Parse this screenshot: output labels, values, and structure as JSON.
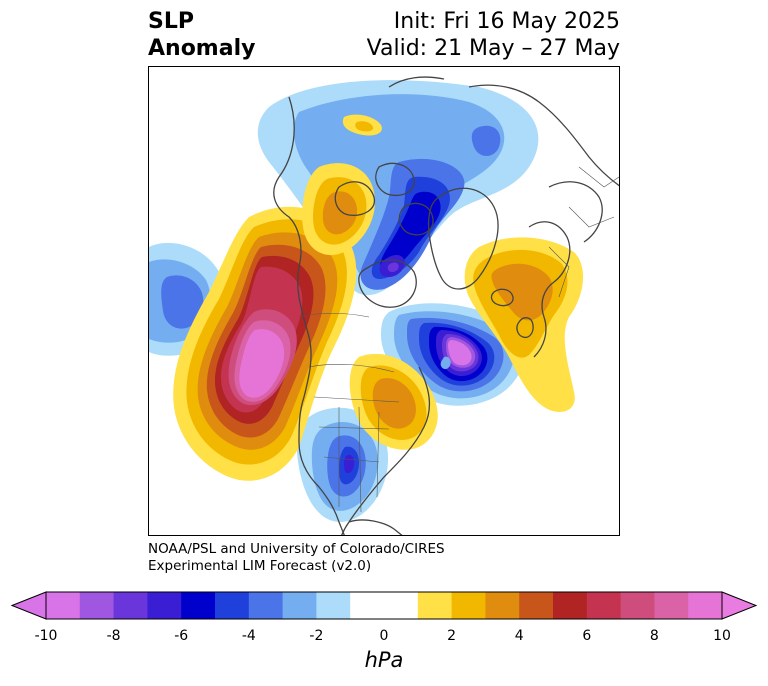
{
  "title": {
    "left_line1": "SLP",
    "left_line2": "Anomaly",
    "right_line1": "Init: Fri 16 May 2025",
    "right_line2": "Valid: 21 May – 27 May"
  },
  "credit": {
    "line1": "NOAA/PSL and University of Colorado/CIRES",
    "line2": "Experimental LIM Forecast (v2.0)"
  },
  "colorbar": {
    "unit_label": "hPa",
    "tick_labels": [
      "-10",
      "-8",
      "-6",
      "-4",
      "-2",
      "0",
      "2",
      "4",
      "6",
      "8",
      "10"
    ],
    "colors": [
      "#d873e8",
      "#9f56e0",
      "#6a36dc",
      "#3a1ed4",
      "#0000cc",
      "#2040dc",
      "#4a74e8",
      "#74aef0",
      "#acdcfa",
      "#ffffff",
      "#ffffff",
      "#ffe046",
      "#f2b800",
      "#e08c0e",
      "#c8561a",
      "#b02424",
      "#c43450",
      "#cf4d7c",
      "#da62a6",
      "#e674d6"
    ],
    "over_color": "#e87ce0",
    "under_color": "#d873e8"
  },
  "map": {
    "projection": "north-polar stereographic",
    "anomaly_centers": [
      {
        "region": "northeast-pacific",
        "sign": "positive",
        "peak_hpa": 10
      },
      {
        "region": "labrador-sea",
        "sign": "negative",
        "peak_hpa": -10
      },
      {
        "region": "arctic-ocean-siberia",
        "sign": "negative",
        "peak_hpa": -7
      },
      {
        "region": "central-pacific",
        "sign": "negative",
        "peak_hpa": -4
      },
      {
        "region": "central-united-states",
        "sign": "negative",
        "peak_hpa": -5
      },
      {
        "region": "alaska-yukon",
        "sign": "positive",
        "peak_hpa": 5
      },
      {
        "region": "eastern-canada",
        "sign": "positive",
        "peak_hpa": 4
      },
      {
        "region": "europe-western-russia",
        "sign": "positive",
        "peak_hpa": 3
      }
    ]
  }
}
